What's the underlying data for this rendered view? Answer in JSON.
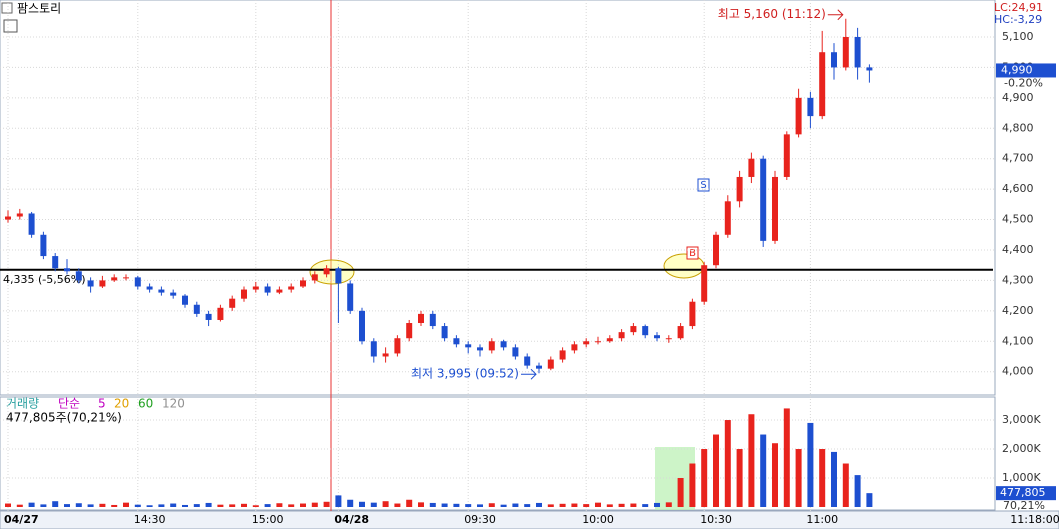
{
  "chart_data": {
    "type": "candlestick",
    "title": "팜스토리",
    "up_color": "#e8231d",
    "down_color": "#1d4fd0",
    "categories": [
      "04/27",
      null,
      null,
      null,
      null,
      null,
      null,
      null,
      null,
      null,
      null,
      "14:30",
      null,
      null,
      null,
      null,
      null,
      null,
      null,
      null,
      null,
      "15:00",
      null,
      null,
      null,
      null,
      null,
      null,
      "04/28",
      null,
      null,
      null,
      null,
      null,
      null,
      null,
      null,
      null,
      null,
      "09:30",
      null,
      null,
      null,
      null,
      null,
      null,
      null,
      null,
      null,
      "10:00",
      null,
      null,
      null,
      null,
      null,
      null,
      null,
      null,
      null,
      "10:30",
      null,
      null,
      null,
      null,
      null,
      null,
      null,
      null,
      "11:00",
      null,
      null,
      null,
      null,
      null
    ],
    "candles": [
      [
        4500,
        4530,
        4490,
        4510
      ],
      [
        4510,
        4535,
        4500,
        4520
      ],
      [
        4520,
        4525,
        4440,
        4450
      ],
      [
        4450,
        4460,
        4370,
        4380
      ],
      [
        4380,
        4390,
        4330,
        4340
      ],
      [
        4340,
        4370,
        4320,
        4330
      ],
      [
        4330,
        4340,
        4290,
        4300
      ],
      [
        4300,
        4310,
        4260,
        4280
      ],
      [
        4280,
        4315,
        4275,
        4300
      ],
      [
        4300,
        4320,
        4295,
        4310
      ],
      [
        4310,
        4320,
        4300,
        4310
      ],
      [
        4310,
        4315,
        4270,
        4280
      ],
      [
        4280,
        4290,
        4260,
        4270
      ],
      [
        4270,
        4280,
        4250,
        4260
      ],
      [
        4260,
        4270,
        4240,
        4250
      ],
      [
        4250,
        4255,
        4210,
        4220
      ],
      [
        4220,
        4230,
        4180,
        4190
      ],
      [
        4190,
        4200,
        4150,
        4170
      ],
      [
        4170,
        4220,
        4165,
        4210
      ],
      [
        4210,
        4250,
        4200,
        4240
      ],
      [
        4240,
        4280,
        4230,
        4270
      ],
      [
        4270,
        4295,
        4260,
        4280
      ],
      [
        4280,
        4290,
        4250,
        4260
      ],
      [
        4260,
        4280,
        4255,
        4270
      ],
      [
        4270,
        4290,
        4260,
        4280
      ],
      [
        4280,
        4310,
        4275,
        4300
      ],
      [
        4300,
        4330,
        4290,
        4320
      ],
      [
        4320,
        4350,
        4310,
        4340
      ],
      [
        4340,
        4345,
        4160,
        4290
      ],
      [
        4290,
        4300,
        4190,
        4200
      ],
      [
        4200,
        4210,
        4090,
        4100
      ],
      [
        4100,
        4110,
        4030,
        4050
      ],
      [
        4050,
        4080,
        4030,
        4060
      ],
      [
        4060,
        4120,
        4050,
        4110
      ],
      [
        4110,
        4170,
        4100,
        4160
      ],
      [
        4160,
        4200,
        4150,
        4190
      ],
      [
        4190,
        4200,
        4140,
        4150
      ],
      [
        4150,
        4160,
        4100,
        4110
      ],
      [
        4110,
        4120,
        4080,
        4090
      ],
      [
        4090,
        4100,
        4060,
        4080
      ],
      [
        4080,
        4090,
        4050,
        4070
      ],
      [
        4070,
        4110,
        4060,
        4100
      ],
      [
        4100,
        4105,
        4070,
        4080
      ],
      [
        4080,
        4090,
        4040,
        4050
      ],
      [
        4050,
        4060,
        4010,
        4020
      ],
      [
        4020,
        4030,
        3995,
        4010
      ],
      [
        4010,
        4050,
        4005,
        4040
      ],
      [
        4040,
        4080,
        4030,
        4070
      ],
      [
        4070,
        4100,
        4060,
        4090
      ],
      [
        4090,
        4110,
        4080,
        4100
      ],
      [
        4100,
        4115,
        4090,
        4100
      ],
      [
        4100,
        4120,
        4095,
        4110
      ],
      [
        4110,
        4140,
        4100,
        4130
      ],
      [
        4130,
        4160,
        4120,
        4150
      ],
      [
        4150,
        4155,
        4110,
        4120
      ],
      [
        4120,
        4130,
        4100,
        4110
      ],
      [
        4110,
        4120,
        4095,
        4110
      ],
      [
        4110,
        4160,
        4105,
        4150
      ],
      [
        4150,
        4240,
        4140,
        4230
      ],
      [
        4230,
        4360,
        4220,
        4350
      ],
      [
        4350,
        4460,
        4340,
        4450
      ],
      [
        4450,
        4580,
        4440,
        4560
      ],
      [
        4560,
        4660,
        4540,
        4640
      ],
      [
        4640,
        4720,
        4620,
        4700
      ],
      [
        4700,
        4710,
        4410,
        4430
      ],
      [
        4430,
        4660,
        4420,
        4640
      ],
      [
        4640,
        4790,
        4630,
        4780
      ],
      [
        4780,
        4930,
        4770,
        4900
      ],
      [
        4900,
        4920,
        4800,
        4840
      ],
      [
        4840,
        5120,
        4830,
        5050
      ],
      [
        5050,
        5080,
        4960,
        5000
      ],
      [
        5000,
        5160,
        4990,
        5100
      ],
      [
        5100,
        5130,
        4960,
        5000
      ],
      [
        5000,
        5010,
        4950,
        4990
      ]
    ],
    "ylim": [
      3930,
      5215
    ],
    "yticks": [
      {
        "value": 4000,
        "label": "4,000"
      },
      {
        "value": 4100,
        "label": "4,100"
      },
      {
        "value": 4200,
        "label": "4,200"
      },
      {
        "value": 4300,
        "label": "4,300"
      },
      {
        "value": 4400,
        "label": "4,400"
      },
      {
        "value": 4500,
        "label": "4,500"
      },
      {
        "value": 4600,
        "label": "4,600"
      },
      {
        "value": 4700,
        "label": "4,700"
      },
      {
        "value": 4800,
        "label": "4,800"
      },
      {
        "value": 4900,
        "label": "4,900"
      },
      {
        "value": 5000,
        "label": "5,000"
      },
      {
        "value": 5100,
        "label": "5,100"
      }
    ],
    "reference_line": {
      "value": 4335,
      "label": "4,335 (-5,56%)"
    },
    "high_annotation": "최고 5,160 (11:12)",
    "low_annotation": "최저 3,995 (09:52)",
    "lc_label": "LC:24,91",
    "hc_label": "HC:-3,29",
    "current_price": "4,990",
    "current_change": "-0.20%",
    "volume": [
      120,
      80,
      150,
      90,
      200,
      100,
      130,
      90,
      110,
      70,
      150,
      80,
      60,
      90,
      120,
      70,
      100,
      140,
      80,
      90,
      110,
      60,
      100,
      130,
      90,
      120,
      150,
      180,
      400,
      250,
      180,
      150,
      200,
      120,
      250,
      160,
      140,
      120,
      110,
      100,
      90,
      130,
      80,
      120,
      100,
      140,
      90,
      110,
      120,
      100,
      150,
      90,
      110,
      120,
      100,
      140,
      160,
      1000,
      1500,
      2000,
      2500,
      3000,
      2000,
      3200,
      2500,
      2200,
      3400,
      2000,
      2900,
      2000,
      1900,
      1500,
      1100,
      477.805
    ],
    "volume_value_labels_last": "477,805",
    "volume_ylim": [
      0,
      3760
    ],
    "volume_ticks": [
      {
        "value": 1000,
        "label": "1,000K"
      },
      {
        "value": 2000,
        "label": "2,000K"
      },
      {
        "value": 3000,
        "label": "3,000K"
      }
    ],
    "volume_title": "거래량",
    "volume_info": "477,805주(70,21%)",
    "volume_ratio": "70,21%",
    "ma_label": "단순",
    "ma_periods": [
      {
        "name": "5",
        "color": "#c000c0"
      },
      {
        "name": "20",
        "color": "#e0a000"
      },
      {
        "name": "60",
        "color": "#20a020"
      },
      {
        "name": "120",
        "color": "#909090"
      }
    ],
    "end_time": "11:18:00"
  }
}
